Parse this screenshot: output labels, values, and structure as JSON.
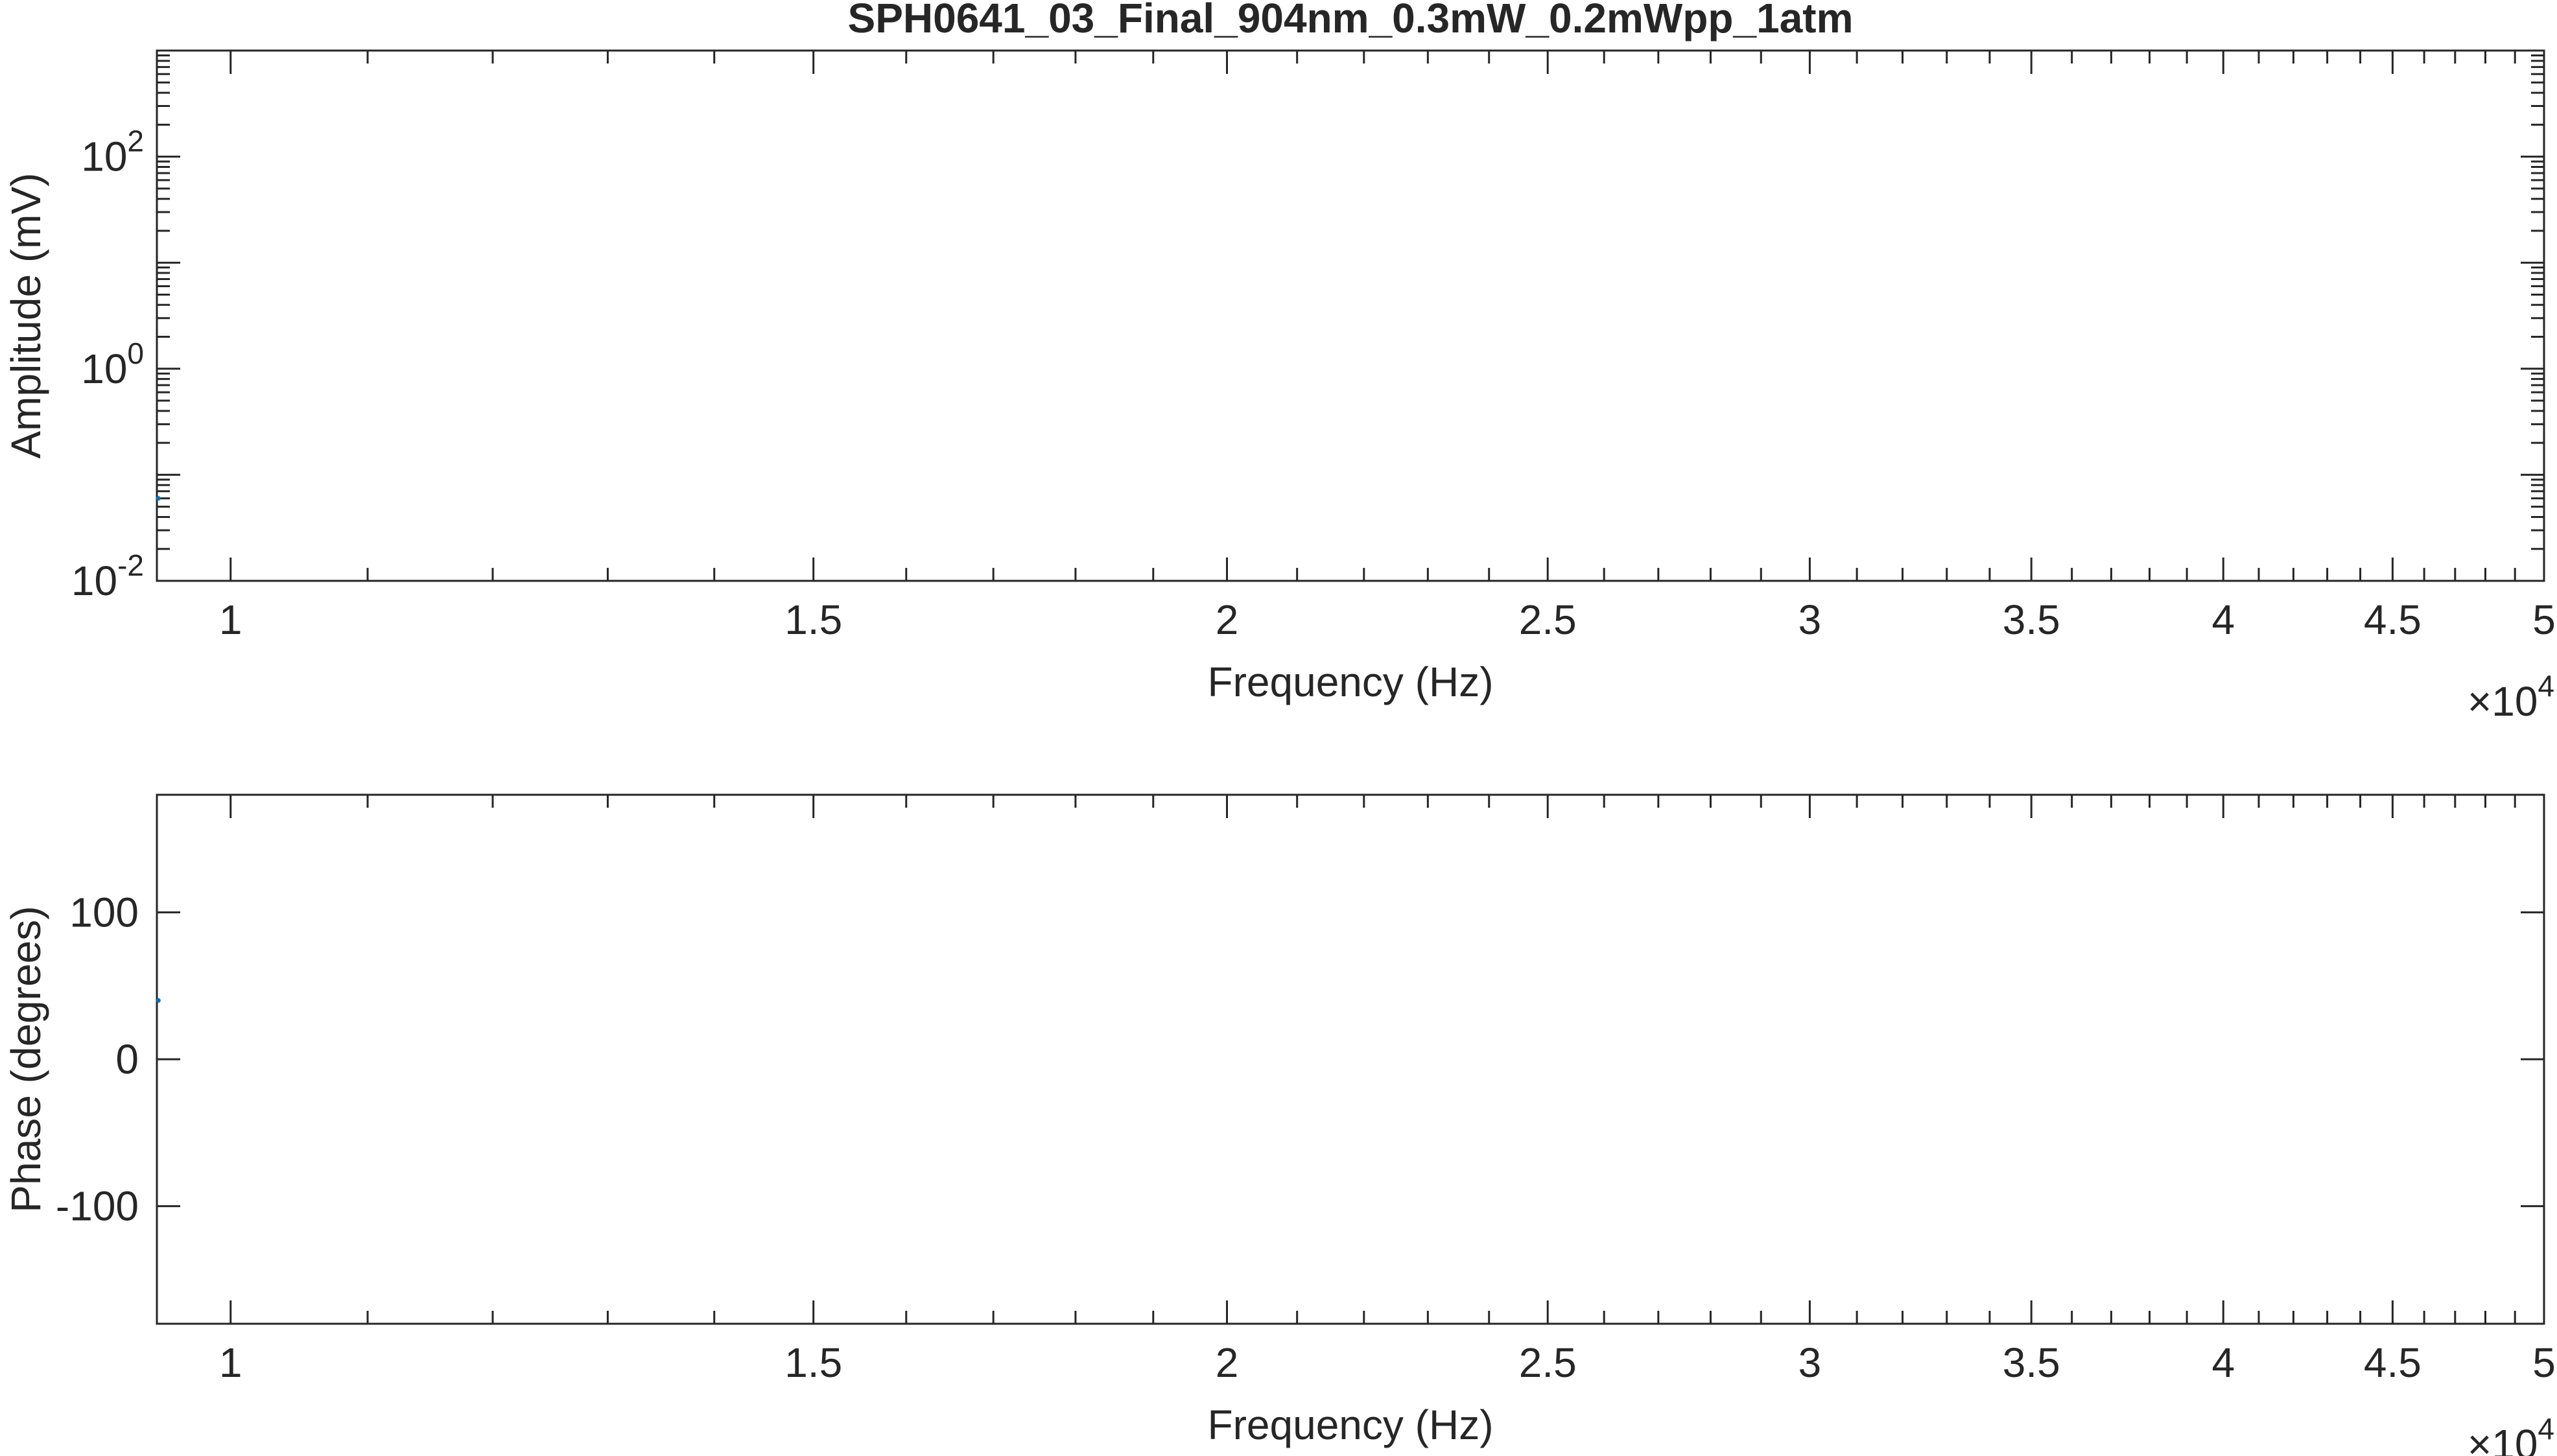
{
  "chart_data": [
    {
      "type": "line",
      "title": "SPH0641_03_Final_904nm_0.3mW_0.2mWpp_1atm",
      "xlabel": "Frequency (Hz)",
      "ylabel": "Amplitude (mV)",
      "xscale": "log",
      "yscale": "log",
      "xlim": [
        9500,
        50000
      ],
      "ylim": [
        0.01,
        1000
      ],
      "x_exponent_label": "×10",
      "x_exponent": "4",
      "xticks": [
        {
          "value": 10000,
          "label": "1"
        },
        {
          "value": 15000,
          "label": "1.5"
        },
        {
          "value": 20000,
          "label": "2"
        },
        {
          "value": 25000,
          "label": "2.5"
        },
        {
          "value": 30000,
          "label": "3"
        },
        {
          "value": 35000,
          "label": "3.5"
        },
        {
          "value": 40000,
          "label": "4"
        },
        {
          "value": 45000,
          "label": "4.5"
        },
        {
          "value": 50000,
          "label": "5"
        }
      ],
      "yticks": [
        {
          "value": 0.01,
          "base": "10",
          "exp": "-2"
        },
        {
          "value": 1,
          "base": "10",
          "exp": "0"
        },
        {
          "value": 100,
          "base": "10",
          "exp": "2"
        }
      ],
      "grid": false,
      "series": [
        {
          "color": "#0072BD",
          "points": [
            {
              "x": 9510,
              "y": 0.06
            }
          ]
        }
      ]
    },
    {
      "type": "line",
      "title": "",
      "xlabel": "Frequency (Hz)",
      "ylabel": "Phase (degrees)",
      "xscale": "log",
      "yscale": "linear",
      "xlim": [
        9500,
        50000
      ],
      "ylim": [
        -180,
        180
      ],
      "x_exponent_label": "×10",
      "x_exponent": "4",
      "xticks": [
        {
          "value": 10000,
          "label": "1"
        },
        {
          "value": 15000,
          "label": "1.5"
        },
        {
          "value": 20000,
          "label": "2"
        },
        {
          "value": 25000,
          "label": "2.5"
        },
        {
          "value": 30000,
          "label": "3"
        },
        {
          "value": 35000,
          "label": "3.5"
        },
        {
          "value": 40000,
          "label": "4"
        },
        {
          "value": 45000,
          "label": "4.5"
        },
        {
          "value": 50000,
          "label": "5"
        }
      ],
      "yticks": [
        {
          "value": 100,
          "label": "100"
        },
        {
          "value": 0,
          "label": "0"
        },
        {
          "value": -100,
          "label": "-100"
        }
      ],
      "grid": false,
      "series": [
        {
          "color": "#0072BD",
          "points": [
            {
              "x": 9510,
              "y": 40
            }
          ]
        }
      ]
    }
  ]
}
